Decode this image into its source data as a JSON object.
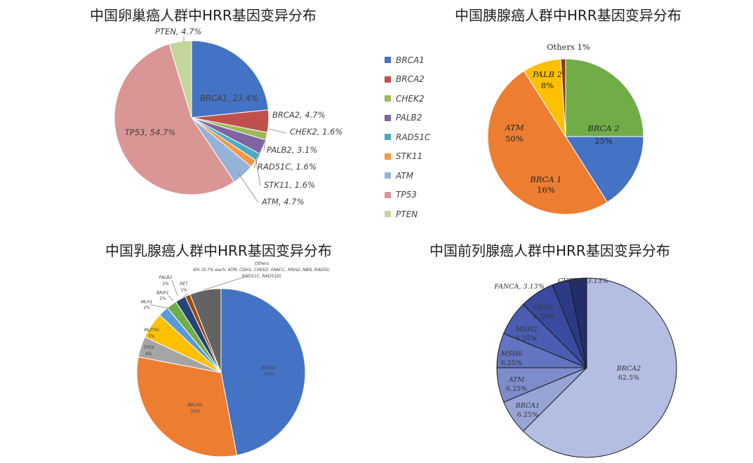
{
  "chart_data": [
    {
      "type": "pie",
      "title": "中国卵巢癌人群中HRR基因变异分布",
      "categories": [
        "BRCA1",
        "BRCA2",
        "CHEK2",
        "PALB2",
        "RAD51C",
        "STK11",
        "ATM",
        "TP53",
        "PTEN"
      ],
      "values": [
        23.4,
        4.7,
        1.6,
        3.1,
        1.6,
        1.6,
        4.7,
        54.7,
        4.7
      ],
      "labels": [
        "BRCA1, 23.4%",
        "BRCA2, 4.7%",
        "CHEK2, 1.6%",
        "PALB2, 3.1%",
        "RAD51C, 1.6%",
        "STK11, 1.6%",
        "ATM, 4.7%",
        "TP53, 54.7%",
        "PTEN, 4.7%"
      ],
      "colors": [
        "#4472C4",
        "#C0504D",
        "#9BBB59",
        "#8064A2",
        "#4BACC6",
        "#F79646",
        "#95B3D7",
        "#D99694",
        "#C3D69B"
      ],
      "legend": [
        "BRCA1",
        "BRCA2",
        "CHEK2",
        "PALB2",
        "RAD51C",
        "STK11",
        "ATM",
        "TP53",
        "PTEN"
      ],
      "legend_position": "right"
    },
    {
      "type": "pie",
      "title": "中国胰腺癌人群中HRR基因变异分布",
      "categories": [
        "BRCA 2",
        "BRCA 1",
        "ATM",
        "PALB 2",
        "Others"
      ],
      "values": [
        25,
        16,
        50,
        8,
        1
      ],
      "label_names": [
        "BRCA 2",
        "BRCA 1",
        "ATM",
        "PALB 2",
        "Others 1%"
      ],
      "label_values": [
        "25%",
        "16%",
        "50%",
        "8%",
        ""
      ],
      "colors": [
        "#70AD47",
        "#4472C4",
        "#ED7D31",
        "#FFC000",
        "#843C0C"
      ]
    },
    {
      "type": "pie",
      "title": "中国乳腺癌人群中HRR基因变异分布",
      "categories": [
        "BRCA1",
        "BRCA2",
        "TP53",
        "MUTYH",
        "MLH1",
        "BRIP1",
        "PALB2",
        "RET",
        "Others"
      ],
      "values": [
        47,
        31,
        4,
        5,
        2,
        2,
        2,
        1,
        6
      ],
      "label_names": [
        "BRCA1",
        "BRCA2",
        "TP53",
        "MUTYH",
        "MLH1",
        "BRIP1",
        "PALB2",
        "RET",
        "Others"
      ],
      "label_values": [
        "47%",
        "31%",
        "4%",
        "5%",
        "2%",
        "2%",
        "2%",
        "1%",
        ""
      ],
      "others_note": [
        "6% (0.7% each: ATM, CDH1, CHEK2, FANCC, MSH2, NBN, RAD50,",
        "RAD51C, RAD51D)"
      ],
      "colors": [
        "#4472C4",
        "#ED7D31",
        "#A5A5A5",
        "#FFC000",
        "#5B9BD5",
        "#70AD47",
        "#264478",
        "#9E480E",
        "#636363"
      ]
    },
    {
      "type": "pie",
      "title": "中国前列腺癌人群中HRR基因变异分布",
      "categories": [
        "BRCA2",
        "BRCA1",
        "ATM",
        "MSH6",
        "MSH2",
        "GEN1",
        "FANCA",
        "CHEK2"
      ],
      "values": [
        62.5,
        6.25,
        6.25,
        6.25,
        6.25,
        6.25,
        3.13,
        3.13
      ],
      "label_names": [
        "BRCA2",
        "BRCA1",
        "ATM",
        "MSH6",
        "MSH2",
        "GEN1",
        "FANCA, 3.13%",
        "CHEK2, 3.13%"
      ],
      "label_values": [
        "62.5%",
        "6.25%",
        "6.25%",
        "6.25%",
        "6.25%",
        "6.25%",
        "",
        ""
      ],
      "colors": [
        "#B4BEE2",
        "#97A4D6",
        "#7D8CCB",
        "#6374C0",
        "#4B5CB2",
        "#3A4A9E",
        "#2C3A85",
        "#222D6C"
      ]
    }
  ]
}
